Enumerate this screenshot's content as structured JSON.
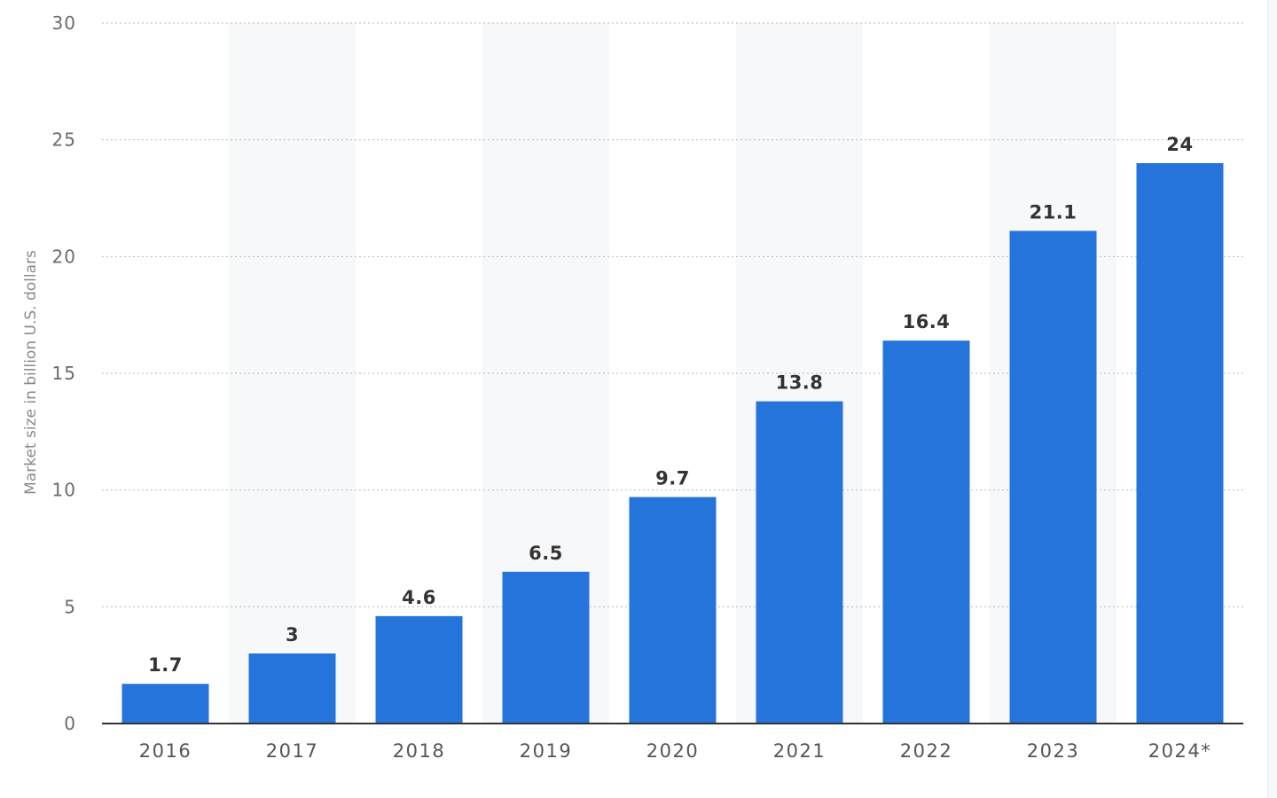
{
  "chart_data": {
    "type": "bar",
    "title": "",
    "xlabel": "",
    "ylabel": "Market size in billion U.S. dollars",
    "categories": [
      "2016",
      "2017",
      "2018",
      "2019",
      "2020",
      "2021",
      "2022",
      "2023",
      "2024*"
    ],
    "values": [
      1.7,
      3,
      4.6,
      6.5,
      9.7,
      13.8,
      16.4,
      21.1,
      24
    ],
    "value_labels": [
      "1.7",
      "3",
      "4.6",
      "6.5",
      "9.7",
      "13.8",
      "16.4",
      "21.1",
      "24"
    ],
    "ylim": [
      0,
      30
    ],
    "yticks": [
      0,
      5,
      10,
      15,
      20,
      25,
      30
    ],
    "grid": true,
    "grid_style": "dotted",
    "alternating_column_bands": true,
    "bar_color": "#2574dc",
    "band_color": "#f7f8fa",
    "legend": "none"
  }
}
